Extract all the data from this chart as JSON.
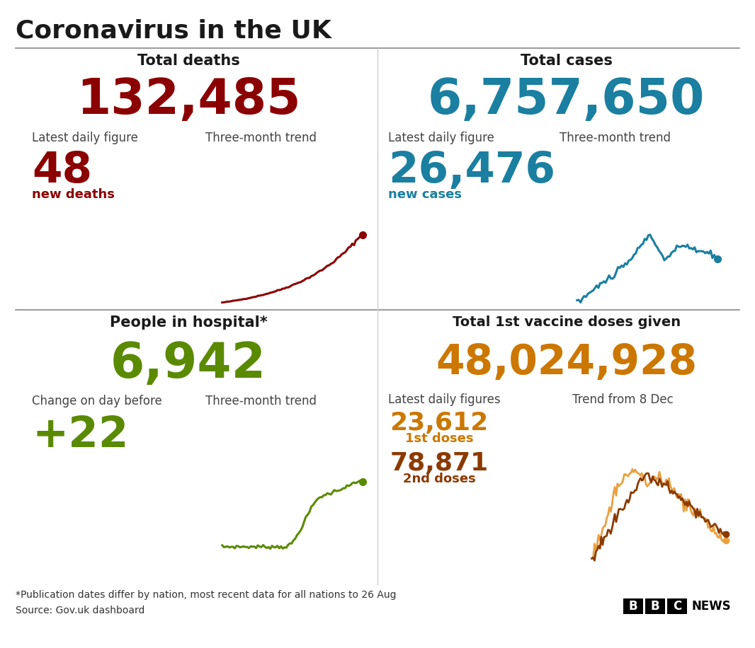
{
  "title": "Coronavirus in the UK",
  "bg_color": "#ffffff",
  "title_color": "#1a1a1a",
  "divider_color": "#555555",
  "deaths_section": {
    "header": "Total deaths",
    "total": "132,485",
    "total_color": "#8b0000",
    "daily_label": "Latest daily figure",
    "trend_label": "Three-month trend",
    "daily_value": "48",
    "daily_sublabel": "new deaths",
    "value_color": "#8b0000",
    "trend_color": "#8b0000"
  },
  "cases_section": {
    "header": "Total cases",
    "total": "6,757,650",
    "total_color": "#1a7fa0",
    "daily_label": "Latest daily figure",
    "trend_label": "Three-month trend",
    "daily_value": "26,476",
    "daily_sublabel": "new cases",
    "value_color": "#1a7fa0",
    "trend_color": "#1a7fa0"
  },
  "hospital_section": {
    "header": "People in hospital*",
    "total": "6,942",
    "total_color": "#5a8a00",
    "daily_label": "Change on day before",
    "trend_label": "Three-month trend",
    "daily_value": "+22",
    "value_color": "#5a8a00",
    "trend_color": "#5a8a00"
  },
  "vaccine_section": {
    "header": "Total 1st vaccine doses given",
    "total": "48,024,928",
    "total_color": "#cc7700",
    "daily_label": "Latest daily figures",
    "trend_label": "Trend from 8 Dec",
    "dose1_value": "23,612",
    "dose1_label": "1st doses",
    "dose2_value": "78,871",
    "dose2_label": "2nd doses",
    "dose1_color": "#cc7700",
    "dose2_color": "#8b3a00",
    "trend_color1": "#e8a040",
    "trend_color2": "#8b3a00"
  },
  "footnote": "*Publication dates differ by nation, most recent data for all nations to 26 Aug",
  "source": "Source: Gov.uk dashboard",
  "footnote_color": "#333333"
}
